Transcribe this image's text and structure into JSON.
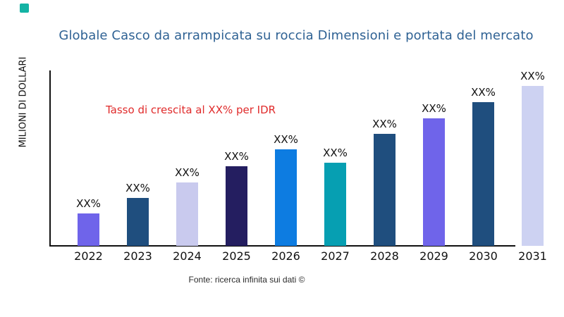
{
  "logo": {
    "name": "brand-logo-square",
    "color": "#14b3a4"
  },
  "title": {
    "text": "Globale Casco da arrampicata su roccia Dimensioni e portata del mercato",
    "color": "#2f6294"
  },
  "annotation": {
    "text": "Tasso di crescita al XX% per IDR",
    "color": "#e02b2b"
  },
  "ylabel": "MILIONI DI DOLLARI",
  "footer": "Fonte: ricerca infinita sui dati ©",
  "chart_data": {
    "type": "bar",
    "title": "Globale Casco da arrampicata su roccia Dimensioni e portata del mercato",
    "xlabel": "",
    "ylabel": "MILIONI DI DOLLARI",
    "categories": [
      "2022",
      "2023",
      "2024",
      "2025",
      "2026",
      "2027",
      "2028",
      "2029",
      "2030",
      "2031"
    ],
    "values": [
      46,
      68,
      90,
      113,
      137,
      118,
      159,
      181,
      204,
      227
    ],
    "values_note": "relative units estimated from bar heights; y axis has no tick labels and bars are labeled XX%",
    "bar_labels": [
      "XX%",
      "XX%",
      "XX%",
      "XX%",
      "XX%",
      "XX%",
      "XX%",
      "XX%",
      "XX%",
      "XX%"
    ],
    "bar_colors": [
      "#6f64ea",
      "#1f4e7e",
      "#c9caee",
      "#241e60",
      "#0d7ce1",
      "#069fb2",
      "#1f4e7e",
      "#6f64ea",
      "#1f4e7e",
      "#cdd2f2"
    ],
    "ylim": [
      0,
      249
    ],
    "grid": false,
    "legend": false,
    "annotation": "Tasso di crescita al XX% per IDR"
  }
}
